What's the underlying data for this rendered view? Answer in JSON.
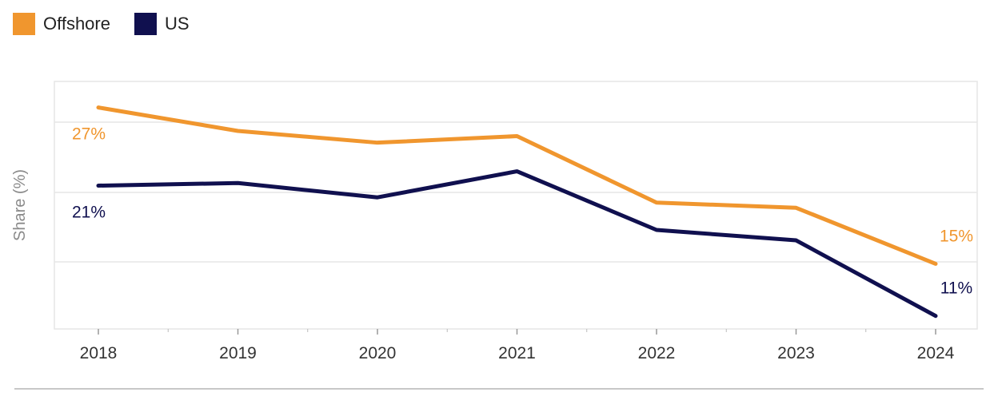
{
  "legend": {
    "offshore_label": "Offshore",
    "us_label": "US"
  },
  "colors": {
    "offshore": "#f0962e",
    "us": "#10104f",
    "grid": "#e6e6e6",
    "axis_text": "#333333",
    "ylabel_text": "#8a8a8a"
  },
  "chart_data": {
    "type": "line",
    "x": [
      "2018",
      "2019",
      "2020",
      "2021",
      "2022",
      "2023",
      "2024"
    ],
    "ylabel": "Share (%)",
    "xlabel": "",
    "title": "",
    "ylim": [
      10,
      29
    ],
    "grid": true,
    "legend_position": "top-left",
    "series": [
      {
        "name": "Offshore",
        "color": "#f0962e",
        "values": [
          27,
          25.2,
          24.3,
          24.8,
          19.7,
          19.3,
          15
        ],
        "labels": [
          "27%",
          null,
          null,
          null,
          null,
          null,
          "15%"
        ]
      },
      {
        "name": "US",
        "color": "#10104f",
        "values": [
          21,
          21.2,
          20.1,
          22.1,
          17.6,
          16.8,
          11
        ],
        "labels": [
          "21%",
          null,
          null,
          null,
          null,
          null,
          "11%"
        ]
      }
    ]
  }
}
